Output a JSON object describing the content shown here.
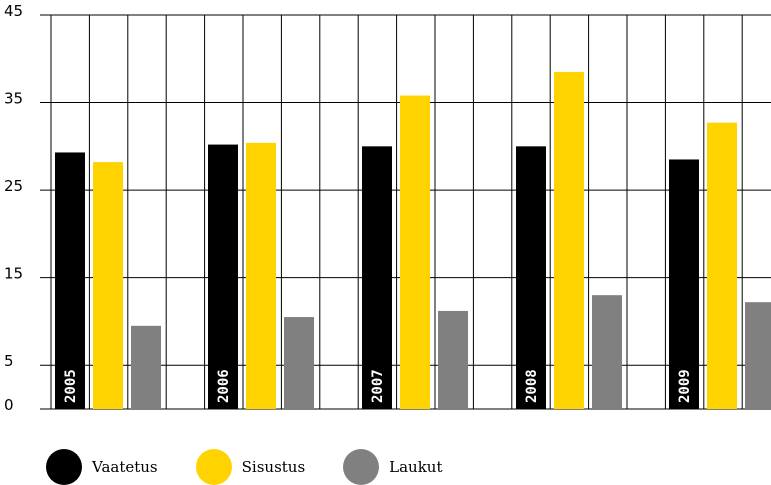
{
  "chart_data": {
    "type": "bar",
    "categories": [
      "2005",
      "2006",
      "2007",
      "2008",
      "2009"
    ],
    "series": [
      {
        "name": "Vaatetus",
        "color": "#000000",
        "values": [
          29.3,
          30.2,
          30.0,
          30.0,
          28.5
        ]
      },
      {
        "name": "Sisustus",
        "color": "#FFD300",
        "values": [
          28.2,
          30.4,
          35.8,
          38.5,
          32.7
        ]
      },
      {
        "name": "Laukut",
        "color": "#808080",
        "values": [
          9.5,
          10.5,
          11.2,
          13.0,
          12.2
        ]
      }
    ],
    "yticks": [
      0,
      5,
      15,
      25,
      35,
      45
    ],
    "ylim": [
      0,
      45
    ],
    "title": "",
    "xlabel": "",
    "ylabel": "",
    "grid": true,
    "legend_position": "bottom-left"
  }
}
